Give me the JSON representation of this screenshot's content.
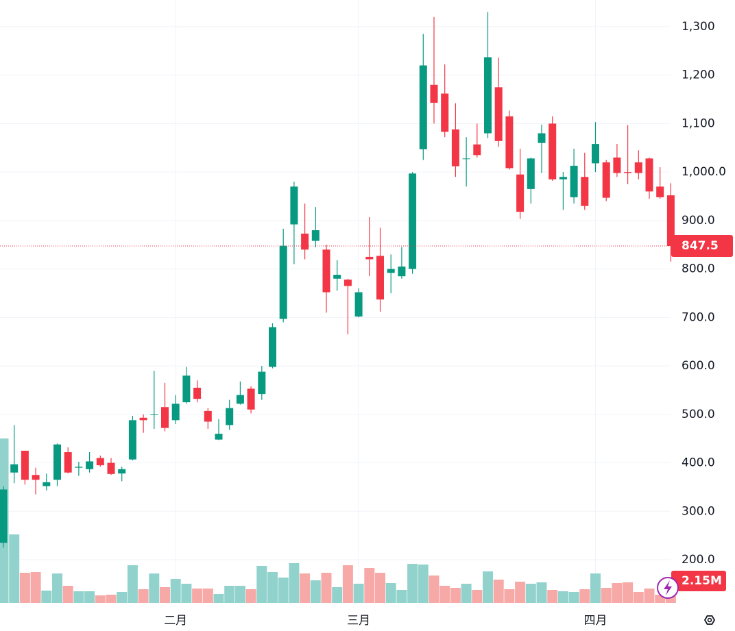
{
  "chart_data": {
    "type": "candlestick",
    "categories": [
      null,
      null,
      null,
      null,
      null,
      null,
      null,
      null,
      null,
      null,
      null,
      null,
      null,
      null,
      null,
      null,
      "二月",
      null,
      null,
      null,
      null,
      null,
      null,
      null,
      null,
      null,
      null,
      null,
      null,
      null,
      null,
      null,
      null,
      "三月",
      null,
      null,
      null,
      null,
      null,
      null,
      null,
      null,
      null,
      null,
      null,
      null,
      null,
      null,
      null,
      null,
      null,
      null,
      null,
      null,
      null,
      "四月",
      null,
      null,
      null,
      null,
      null,
      null,
      null
    ],
    "open": [
      235,
      380,
      425,
      375,
      352,
      365,
      422,
      390,
      387,
      410,
      400,
      378,
      407,
      493,
      500,
      515,
      488,
      525,
      555,
      507,
      448,
      478,
      522,
      553,
      542,
      598,
      697,
      892,
      873,
      858,
      840,
      780,
      778,
      702,
      825,
      827,
      792,
      785,
      800,
      1047,
      1180,
      1162,
      1088,
      1028,
      1057,
      1080,
      1175,
      1115,
      995,
      965,
      1060,
      1100,
      985,
      948,
      990,
      1018,
      1020,
      1030,
      1000,
      1020,
      1028,
      970,
      952
    ],
    "high": [
      352,
      478,
      425,
      390,
      378,
      440,
      432,
      402,
      422,
      415,
      410,
      392,
      497,
      500,
      590,
      565,
      540,
      598,
      570,
      513,
      490,
      530,
      568,
      558,
      600,
      688,
      883,
      980,
      935,
      928,
      850,
      818,
      780,
      760,
      907,
      885,
      830,
      845,
      1000,
      1285,
      1320,
      1222,
      1142,
      1072,
      1100,
      1330,
      1236,
      1127,
      1048,
      1030,
      1098,
      1115,
      1000,
      1048,
      1040,
      1103,
      1025,
      1058,
      1097,
      1045,
      1030,
      1010,
      977
    ],
    "low": [
      225,
      358,
      355,
      335,
      343,
      352,
      378,
      373,
      380,
      392,
      375,
      362,
      405,
      462,
      470,
      465,
      480,
      522,
      525,
      470,
      447,
      468,
      520,
      502,
      530,
      595,
      690,
      810,
      820,
      845,
      710,
      755,
      665,
      700,
      785,
      712,
      750,
      780,
      790,
      1025,
      1100,
      1072,
      990,
      970,
      1030,
      1070,
      1052,
      1005,
      903,
      935,
      998,
      982,
      922,
      935,
      922,
      1000,
      940,
      990,
      975,
      985,
      945,
      945,
      815
    ],
    "close": [
      345,
      397,
      365,
      365,
      360,
      438,
      380,
      392,
      403,
      395,
      377,
      387,
      488,
      488,
      500,
      472,
      522,
      580,
      532,
      485,
      460,
      513,
      540,
      510,
      588,
      680,
      848,
      970,
      840,
      880,
      752,
      788,
      765,
      752,
      820,
      737,
      800,
      805,
      997,
      1220,
      1143,
      1083,
      1012,
      1028,
      1035,
      1237,
      1064,
      1008,
      918,
      1028,
      1080,
      985,
      990,
      1013,
      930,
      1058,
      947,
      998,
      998,
      998,
      960,
      948,
      847.5
    ],
    "volume": {
      "values": [
        16080000,
        6700000,
        2948000,
        3015000,
        1206000,
        2881000,
        1675000,
        1139000,
        1139000,
        737000,
        804000,
        1072000,
        3685000,
        1340000,
        2881000,
        1541000,
        2345000,
        1876000,
        1407000,
        1407000,
        871000,
        1675000,
        1675000,
        1340000,
        3618000,
        3015000,
        2479000,
        3886000,
        2881000,
        2211000,
        2948000,
        1541000,
        3685000,
        1876000,
        3417000,
        2948000,
        1943000,
        1273000,
        3819000,
        3752000,
        2680000,
        1675000,
        1474000,
        1876000,
        1273000,
        3082000,
        2278000,
        1340000,
        2077000,
        1876000,
        2010000,
        1273000,
        1139000,
        1072000,
        1340000,
        2881000,
        1474000,
        1943000,
        2010000,
        1072000,
        1407000,
        804000,
        2150000
      ],
      "value_labels": [
        null,
        null,
        null,
        null,
        null,
        null,
        null,
        null,
        null,
        null,
        null,
        null,
        null,
        null,
        null,
        null,
        null,
        null,
        null,
        null,
        null,
        null,
        null,
        null,
        null,
        null,
        null,
        null,
        null,
        null,
        null,
        null,
        null,
        null,
        null,
        null,
        null,
        null,
        null,
        null,
        null,
        null,
        null,
        null,
        null,
        null,
        null,
        null,
        null,
        null,
        null,
        null,
        null,
        null,
        null,
        null,
        null,
        null,
        null,
        null,
        null,
        null,
        "2.15M"
      ]
    },
    "up_color": "#089981",
    "down_color": "#f23645",
    "up_volume_color": "#92d2cc",
    "down_volume_color": "#f7a9a7",
    "ylim": [
      111,
      1355
    ],
    "yticks": [
      {
        "value": 200,
        "label": "200.0"
      },
      {
        "value": 300,
        "label": "300.0"
      },
      {
        "value": 400,
        "label": "400.0"
      },
      {
        "value": 500,
        "label": "500.0"
      },
      {
        "value": 600,
        "label": "600.0"
      },
      {
        "value": 700,
        "label": "700.0"
      },
      {
        "value": 800,
        "label": "800.0"
      },
      {
        "value": 900,
        "label": "900.0"
      },
      {
        "value": 1000,
        "label": "1,000.0"
      },
      {
        "value": 1100,
        "label": "1,100"
      },
      {
        "value": 1200,
        "label": "1,200"
      },
      {
        "value": 1300,
        "label": "1,300"
      }
    ],
    "grid": true
  }
}
